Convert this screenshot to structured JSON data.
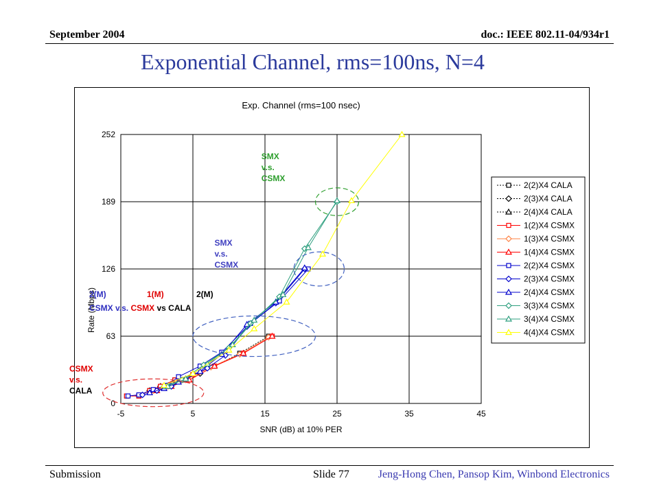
{
  "header": {
    "left": "September 2004",
    "right": "doc.: IEEE 802.11-04/934r1"
  },
  "slide_title": "Exponential Channel, rms=100ns, N=4",
  "footer": {
    "left": "Submission",
    "slide": "Slide 77",
    "right": "Jeng-Hong Chen, Pansop Kim, Winbond Electronics"
  },
  "chart_data": {
    "type": "line",
    "title": "Exp. Channel (rms=100 nsec)",
    "xlabel": "SNR (dB) at 10% PER",
    "ylabel": "Rate (Mbps)",
    "xlim": [
      -5,
      45
    ],
    "ylim": [
      0,
      252
    ],
    "xticks": [
      -5,
      5,
      15,
      25,
      35,
      45
    ],
    "yticks": [
      0,
      63,
      126,
      189,
      252
    ],
    "grid": true,
    "legend": "right",
    "series": [
      {
        "name": "2(2)X4 CALA",
        "color": "#000000",
        "marker": "square",
        "dash": "2,2",
        "points": [
          [
            -4.2,
            7
          ],
          [
            -2.5,
            7
          ],
          [
            -1,
            12
          ],
          [
            0.5,
            16
          ],
          [
            2.5,
            22
          ],
          [
            5,
            27
          ],
          [
            8,
            35
          ],
          [
            11.5,
            47
          ],
          [
            15.5,
            63
          ]
        ]
      },
      {
        "name": "2(3)X4 CALA",
        "color": "#000000",
        "marker": "diamond",
        "dash": "2,2",
        "points": [
          [
            -1,
            12
          ],
          [
            0.5,
            16
          ],
          [
            3,
            22
          ],
          [
            6,
            28
          ]
        ]
      },
      {
        "name": "2(4)X4 CALA",
        "color": "#000000",
        "marker": "triangle",
        "dash": "2,2",
        "points": [
          [
            -0.5,
            12
          ],
          [
            1.5,
            16
          ],
          [
            4,
            22
          ]
        ]
      },
      {
        "name": "1(2)X4 CSMX",
        "color": "#ff0000",
        "marker": "square",
        "points": [
          [
            -4.2,
            7
          ],
          [
            -2.5,
            7
          ],
          [
            -1,
            12
          ],
          [
            0.5,
            16
          ],
          [
            2.5,
            22
          ],
          [
            5,
            27
          ],
          [
            8,
            35
          ],
          [
            12,
            47
          ],
          [
            16,
            63
          ]
        ]
      },
      {
        "name": "1(3)X4 CSMX",
        "color": "#ff8040",
        "marker": "diamond",
        "points": [
          [
            -0.5,
            12
          ],
          [
            1.5,
            16
          ],
          [
            4,
            22
          ],
          [
            7.5,
            34
          ],
          [
            11.5,
            46
          ],
          [
            15.5,
            62
          ]
        ]
      },
      {
        "name": "1(4)X4 CSMX",
        "color": "#ff0000",
        "marker": "triangle",
        "points": [
          [
            0,
            12
          ],
          [
            2,
            16
          ],
          [
            4.5,
            22
          ],
          [
            8,
            35
          ],
          [
            12,
            47
          ],
          [
            16,
            63
          ]
        ]
      },
      {
        "name": "2(2)X4 CSMX",
        "color": "#0000cc",
        "marker": "square",
        "points": [
          [
            -4,
            7
          ],
          [
            -2.5,
            8
          ],
          [
            -0.5,
            13
          ],
          [
            1.5,
            17
          ],
          [
            3,
            25
          ],
          [
            6,
            35
          ],
          [
            9,
            48
          ],
          [
            13,
            75
          ],
          [
            17,
            96
          ],
          [
            21,
            126
          ]
        ]
      },
      {
        "name": "2(3)X4 CSMX",
        "color": "#0000cc",
        "marker": "diamond",
        "points": [
          [
            -2,
            8
          ],
          [
            0,
            12
          ],
          [
            2,
            16
          ],
          [
            4,
            23
          ],
          [
            7,
            33
          ],
          [
            9.5,
            45
          ],
          [
            12.5,
            72
          ],
          [
            16.5,
            94
          ],
          [
            20.5,
            126
          ]
        ]
      },
      {
        "name": "2(4)X4 CSMX",
        "color": "#0000cc",
        "marker": "triangle",
        "points": [
          [
            -1,
            10
          ],
          [
            1,
            14
          ],
          [
            3,
            20
          ],
          [
            6,
            30
          ],
          [
            9,
            46
          ],
          [
            12.5,
            74
          ],
          [
            16.5,
            95
          ],
          [
            20.5,
            127
          ]
        ]
      },
      {
        "name": "3(3)X4 CSMX",
        "color": "#2e9f7f",
        "marker": "diamond",
        "points": [
          [
            1,
            16
          ],
          [
            3.5,
            22
          ],
          [
            6.5,
            36
          ],
          [
            10,
            52
          ],
          [
            13,
            75
          ],
          [
            17,
            100
          ],
          [
            20.5,
            145
          ],
          [
            25,
            189
          ]
        ]
      },
      {
        "name": "3(4)X4 CSMX",
        "color": "#2e9f7f",
        "marker": "triangle",
        "points": [
          [
            1.5,
            16
          ],
          [
            4,
            23
          ],
          [
            7,
            37
          ],
          [
            10.5,
            55
          ],
          [
            13.5,
            78
          ],
          [
            17.5,
            102
          ],
          [
            21,
            146
          ],
          [
            25,
            190
          ]
        ]
      },
      {
        "name": "4(4)X4 CSMX",
        "color": "#ffff00",
        "marker": "triangle",
        "points": [
          [
            1,
            17
          ],
          [
            5,
            28
          ],
          [
            10,
            50
          ],
          [
            13.5,
            70
          ],
          [
            18,
            95
          ],
          [
            23,
            140
          ],
          [
            27,
            190
          ],
          [
            34,
            252
          ]
        ]
      }
    ],
    "annotations": [
      {
        "lines": [
          "SMX",
          "v.s.",
          "CSMX"
        ],
        "color": "#2e9f2e",
        "x": 14.5,
        "y": 229
      },
      {
        "lines": [
          "SMX",
          "v.s.",
          "CSMX"
        ],
        "color": "#4040c0",
        "x": 8,
        "y": 148
      },
      {
        "lines": [
          "CSMX",
          "v.s.",
          "CALA"
        ],
        "color_lines": [
          "#e00000",
          "#e00000",
          "#000000"
        ],
        "x": -13,
        "y": 30
      },
      {
        "parts": [
          {
            "text": "2(M)",
            "color": "#3030c0"
          },
          {
            "text": "1(M)",
            "color": "#e00000"
          },
          {
            "text": "2(M)",
            "color": "#000000"
          }
        ],
        "row2": [
          {
            "text": "CSMX v.s. ",
            "color": "#3030c0"
          },
          {
            "text": "CSMX",
            "color": "#e00000"
          },
          {
            "text": " vs CALA",
            "color": "#000000"
          }
        ]
      }
    ]
  }
}
